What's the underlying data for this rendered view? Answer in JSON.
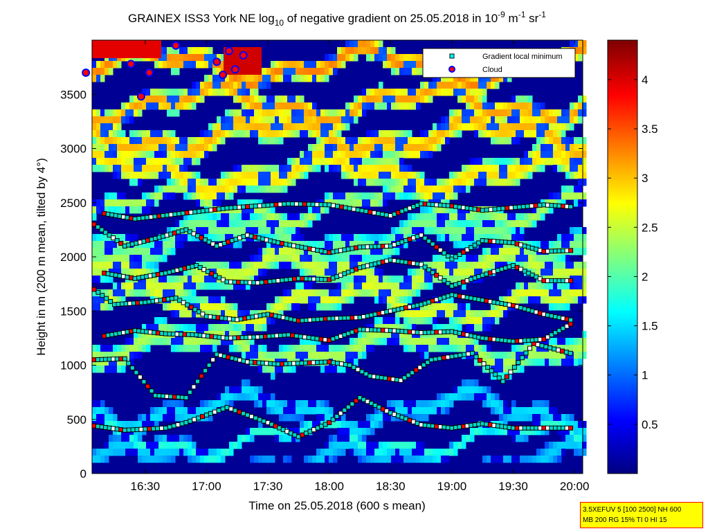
{
  "chart_data": {
    "type": "heatmap",
    "title_parts": {
      "prefix": "GRAINEX ISS3 York NE log",
      "prefix_sub": "10",
      "middle": " of negative gradient on 25.05.2018 in 10",
      "exp1": "-9",
      "unit1": " m",
      "exp2": "-1",
      "unit2": " sr",
      "exp3": "-1"
    },
    "xlabel": "Time on 25.05.2018 (600 s mean)",
    "ylabel": "Height in m (200 m mean, tilted by 4°)",
    "x_range": [
      "16:04",
      "20:04"
    ],
    "x_ticks": [
      "16:30",
      "17:00",
      "17:30",
      "18:00",
      "18:30",
      "19:00",
      "19:30",
      "20:00"
    ],
    "y_range": [
      0,
      4000
    ],
    "y_ticks": [
      "0",
      "500",
      "1000",
      "1500",
      "2000",
      "2500",
      "3000",
      "3500"
    ],
    "colorbar": {
      "range": [
        0,
        4.4
      ],
      "ticks": [
        "0.5",
        "1",
        "1.5",
        "2",
        "2.5",
        "3",
        "3.5",
        "4"
      ],
      "colormap": "jet"
    },
    "legend": {
      "placement": "top-right",
      "entries": [
        {
          "label": "Gradient local minimum",
          "marker": "square",
          "color": "#00ffff",
          "edge": "#000000"
        },
        {
          "label": "Cloud",
          "marker": "circle",
          "color": "#ff0000",
          "edge": "#0000ff"
        }
      ]
    },
    "series": [
      {
        "name": "Gradient local minimum",
        "layers": [
          {
            "x": [
              "16:05",
              "16:20",
              "16:40",
              "16:50",
              "17:10",
              "17:30",
              "17:45",
              "18:00",
              "18:15",
              "18:30",
              "18:45",
              "19:00",
              "19:15",
              "19:30",
              "19:45",
              "20:00"
            ],
            "y": [
              440,
              400,
              420,
              470,
              610,
              470,
              340,
              470,
              700,
              560,
              450,
              420,
              460,
              420,
              420,
              420
            ]
          },
          {
            "x": [
              "16:05",
              "16:20",
              "16:35",
              "16:50",
              "17:05",
              "17:20",
              "17:35",
              "18:00",
              "18:10",
              "18:20",
              "18:35",
              "18:50",
              "19:10",
              "19:25",
              "19:40",
              "20:00"
            ],
            "y": [
              1050,
              1060,
              720,
              700,
              1100,
              1030,
              1010,
              1030,
              1000,
              900,
              860,
              1050,
              1110,
              850,
              1200,
              1100
            ]
          },
          {
            "x": [
              "16:10",
              "16:25",
              "16:40",
              "16:55",
              "17:10",
              "17:25",
              "17:40",
              "18:00",
              "18:15",
              "18:30",
              "18:45",
              "19:00",
              "19:15",
              "19:30",
              "19:45",
              "20:00"
            ],
            "y": [
              1270,
              1320,
              1290,
              1280,
              1250,
              1260,
              1280,
              1230,
              1330,
              1320,
              1300,
              1310,
              1250,
              1220,
              1240,
              1400
            ]
          },
          {
            "x": [
              "16:05",
              "16:15",
              "16:30",
              "16:45",
              "17:00",
              "17:15",
              "17:30",
              "17:45",
              "18:00",
              "18:15",
              "18:30",
              "18:45",
              "19:00",
              "19:15",
              "19:30",
              "19:45",
              "20:00"
            ],
            "y": [
              1700,
              1560,
              1580,
              1620,
              1450,
              1420,
              1470,
              1410,
              1430,
              1440,
              1500,
              1560,
              1650,
              1600,
              1550,
              1470,
              1410
            ]
          },
          {
            "x": [
              "16:10",
              "16:25",
              "16:40",
              "16:55",
              "17:10",
              "17:25",
              "17:45",
              "18:00",
              "18:15",
              "18:30",
              "18:45",
              "19:00",
              "19:15",
              "19:30",
              "19:45",
              "20:00"
            ],
            "y": [
              1850,
              1800,
              1850,
              1920,
              1770,
              1760,
              1800,
              1790,
              1900,
              1970,
              1930,
              1730,
              1830,
              1920,
              1780,
              1780
            ]
          },
          {
            "x": [
              "16:05",
              "16:20",
              "16:35",
              "16:50",
              "17:05",
              "17:20",
              "17:35",
              "18:00",
              "18:15",
              "18:30",
              "18:45",
              "19:00",
              "19:15",
              "19:30",
              "19:45",
              "20:00"
            ],
            "y": [
              2300,
              2100,
              2170,
              2250,
              2100,
              2200,
              2130,
              2040,
              2090,
              2100,
              2200,
              1980,
              2150,
              2130,
              2050,
              2060
            ]
          },
          {
            "x": [
              "16:10",
              "16:25",
              "17:10",
              "17:40",
              "18:00",
              "18:30",
              "18:45",
              "19:00",
              "19:15",
              "19:45",
              "20:00"
            ],
            "y": [
              2400,
              2350,
              2450,
              2490,
              2480,
              2380,
              2490,
              2470,
              2430,
              2480,
              2460
            ]
          }
        ]
      },
      {
        "name": "Cloud",
        "x": [
          "16:23",
          "16:28",
          "16:32",
          "16:45",
          "17:05",
          "17:08",
          "17:11",
          "17:14",
          "17:18",
          "16:01"
        ],
        "y": [
          3780,
          3480,
          3700,
          3950,
          3800,
          3680,
          3900,
          3730,
          3860,
          3700
        ]
      }
    ]
  },
  "note": {
    "line1": "3.5XEFUV 5 [100 2500] NH 600",
    "line2": "MB 200 RG 15% TI 0 HI 15"
  }
}
